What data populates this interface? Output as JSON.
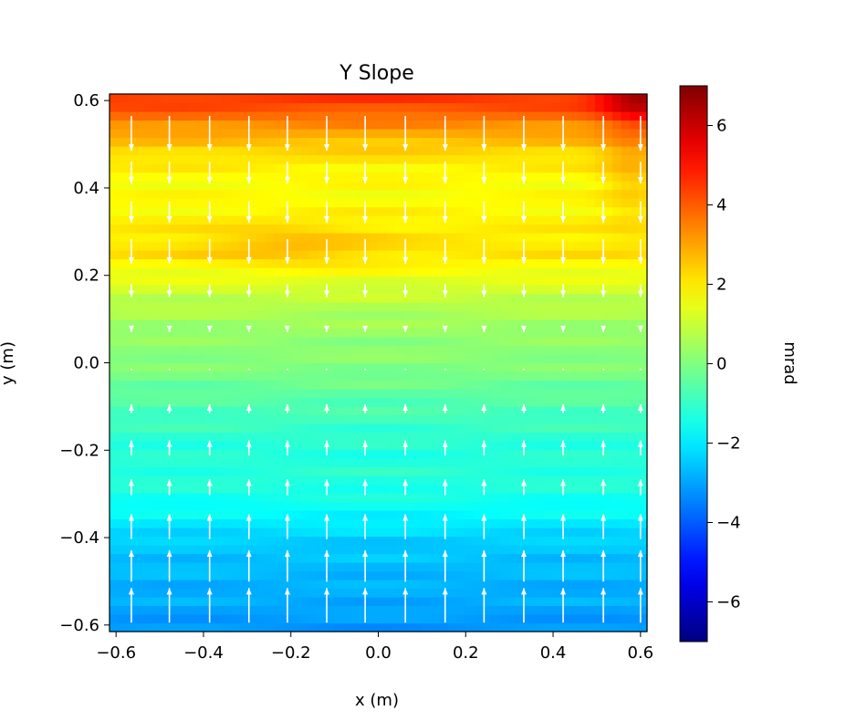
{
  "chart_data": {
    "type": "heatmap",
    "title": "Y Slope",
    "xlabel": "x (m)",
    "ylabel": "y (m)",
    "xlim": [
      -0.615,
      0.615
    ],
    "ylim": [
      -0.615,
      0.615
    ],
    "x_ticks": [
      -0.6,
      -0.4,
      -0.2,
      0.0,
      0.2,
      0.4,
      0.6
    ],
    "x_tick_labels": [
      "−0.6",
      "−0.4",
      "−0.2",
      "0.0",
      "0.2",
      "0.4",
      "0.6"
    ],
    "y_ticks": [
      -0.6,
      -0.4,
      -0.2,
      0.0,
      0.2,
      0.4,
      0.6
    ],
    "y_tick_labels": [
      "−0.6",
      "−0.4",
      "−0.2",
      "0.0",
      "0.2",
      "0.4",
      "0.6"
    ],
    "grid": false,
    "colormap": "jet",
    "colorbar": {
      "label": "mrad",
      "range": [
        -7,
        7
      ],
      "ticks": [
        -6,
        -4,
        -2,
        0,
        2,
        4,
        6
      ],
      "tick_labels": [
        "−6",
        "−4",
        "−2",
        "0",
        "2",
        "4",
        "6"
      ]
    },
    "slope_profile_by_y": {
      "y": [
        -0.6,
        -0.55,
        -0.5,
        -0.45,
        -0.4,
        -0.35,
        -0.3,
        -0.25,
        -0.2,
        -0.15,
        -0.1,
        -0.05,
        0.0,
        0.05,
        0.1,
        0.15,
        0.2,
        0.25,
        0.3,
        0.35,
        0.4,
        0.45,
        0.5,
        0.55,
        0.6
      ],
      "slope_mrad": [
        -3.2,
        -2.9,
        -2.8,
        -2.6,
        -2.4,
        -1.8,
        -1.4,
        -1.2,
        -1.3,
        -1.0,
        -0.7,
        -0.3,
        0.1,
        0.2,
        0.5,
        0.9,
        1.5,
        2.1,
        2.0,
        1.8,
        1.7,
        1.9,
        2.5,
        3.4,
        4.5
      ],
      "top_right_corner_mrad": 6.5
    },
    "quiver": {
      "x": [
        -0.565,
        -0.478,
        -0.386,
        -0.296,
        -0.208,
        -0.118,
        -0.03,
        0.062,
        0.153,
        0.242,
        0.333,
        0.423,
        0.515,
        0.6
      ],
      "y": [
        -0.555,
        -0.465,
        -0.375,
        -0.285,
        -0.195,
        -0.105,
        -0.015,
        0.075,
        0.165,
        0.255,
        0.345,
        0.435,
        0.525
      ],
      "direction_note_top": "down",
      "direction_note_bottom": "up"
    }
  }
}
